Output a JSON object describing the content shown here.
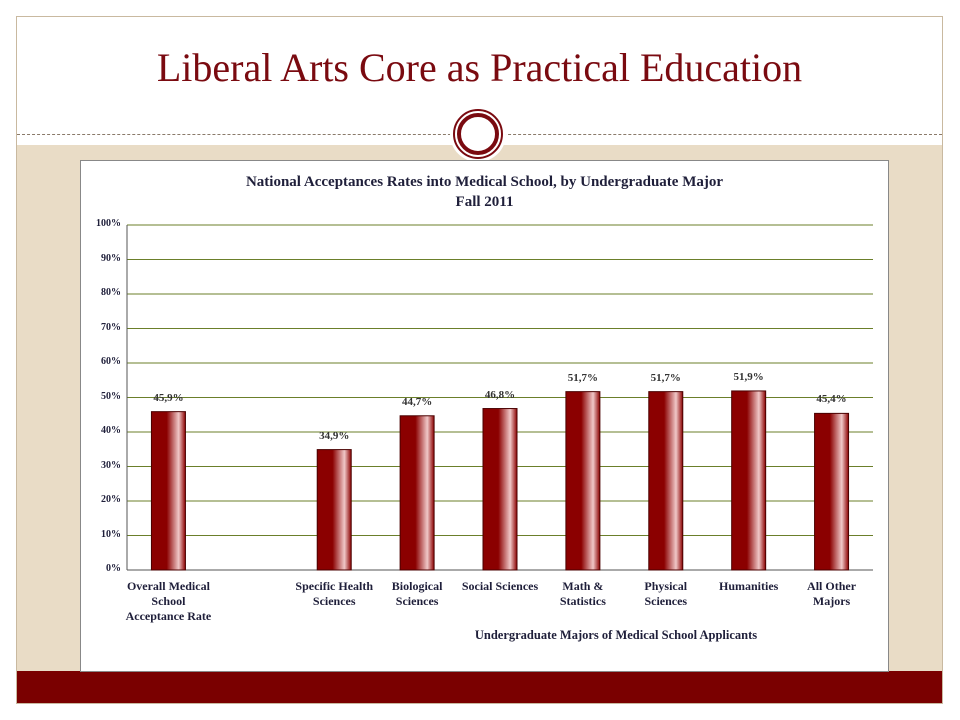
{
  "slide": {
    "title": "Liberal Arts Core as Practical Education"
  },
  "colors": {
    "title": "#7a0a10",
    "bar": "#8b0000",
    "bar_highlight": "#f0c8c8",
    "band": "#7a0000",
    "background": "#e9dcc6",
    "grid": "#6b7f2a"
  },
  "icons": {
    "ornament": "circle-ornament-icon"
  },
  "chart_data": {
    "type": "bar",
    "title": "National Acceptances Rates into Medical School, by Undergraduate Major",
    "subtitle": "Fall 2011",
    "xlabel": "Undergraduate Majors of Medical School Applicants",
    "ylabel": "",
    "ylim": [
      0,
      100
    ],
    "yticks": [
      "0%",
      "10%",
      "20%",
      "30%",
      "40%",
      "50%",
      "60%",
      "70%",
      "80%",
      "90%",
      "100%"
    ],
    "grid": true,
    "categories": [
      "Overall Medical School Acceptance Rate",
      "",
      "Specific Health Sciences",
      "Biological Sciences",
      "Social Sciences",
      "Math & Statistics",
      "Physical Sciences",
      "Humanities",
      "All Other Majors"
    ],
    "values": [
      45.9,
      null,
      34.9,
      44.7,
      46.8,
      51.7,
      51.7,
      51.9,
      45.4
    ],
    "value_labels": [
      "45,9%",
      "",
      "34,9%",
      "44,7%",
      "46,8%",
      "51,7%",
      "51,7%",
      "51,9%",
      "45,4%"
    ]
  }
}
